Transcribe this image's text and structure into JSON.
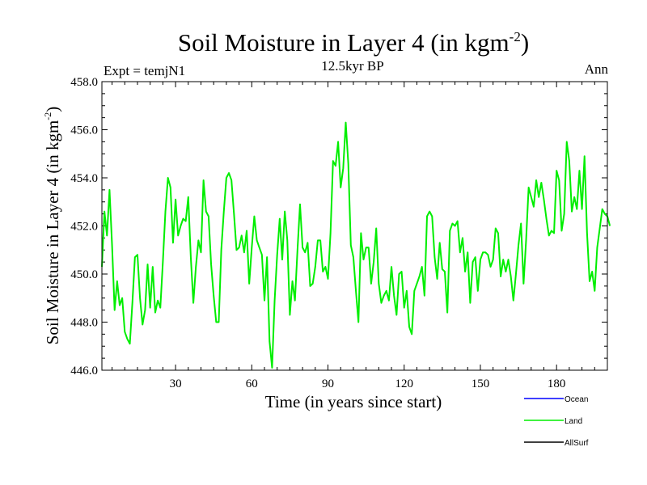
{
  "chart_data": {
    "type": "line",
    "title_main": "Soil Moisture in Layer 4 (in kgm",
    "title_sup": "-2",
    "title_close": ")",
    "subtitle": "12.5kyr BP",
    "left_label": "Expt = temjN1",
    "right_label": "Ann",
    "xlabel": "Time (in years since start)",
    "ylabel_main": "Soil Moisture in Layer 4 (in kgm",
    "ylabel_sup": "-2",
    "ylabel_close": ")",
    "xlim": [
      1,
      200
    ],
    "ylim": [
      446.0,
      458.0
    ],
    "x_ticks": [
      30,
      60,
      90,
      120,
      150,
      180
    ],
    "y_ticks": [
      "446.0",
      "448.0",
      "450.0",
      "452.0",
      "454.0",
      "456.0",
      "458.0"
    ],
    "legend_position": "bottom-right",
    "legend": [
      {
        "name": "Ocean",
        "color": "#0000ff"
      },
      {
        "name": "Land",
        "color": "#00ee00"
      },
      {
        "name": "AllSurf",
        "color": "#000000"
      }
    ],
    "series": [
      {
        "name": "Land",
        "color": "#00ee00",
        "x_start": 1,
        "values": [
          450.3,
          452.6,
          451.6,
          453.5,
          451.2,
          448.5,
          449.7,
          448.7,
          449.0,
          447.6,
          447.3,
          447.1,
          448.8,
          450.7,
          450.8,
          449.0,
          447.9,
          448.5,
          450.4,
          448.6,
          450.3,
          448.4,
          448.9,
          448.6,
          450.5,
          452.6,
          454.0,
          453.6,
          451.3,
          453.1,
          451.6,
          452.0,
          452.3,
          452.2,
          453.2,
          450.7,
          448.8,
          450.3,
          451.4,
          450.9,
          453.9,
          452.6,
          452.4,
          450.4,
          449.1,
          448.0,
          448.0,
          451.0,
          452.6,
          454.0,
          454.2,
          453.9,
          452.5,
          451.0,
          451.1,
          451.6,
          450.9,
          451.8,
          449.6,
          451.1,
          452.4,
          451.4,
          451.1,
          450.8,
          448.9,
          450.7,
          447.2,
          446.1,
          448.9,
          450.8,
          452.3,
          450.6,
          452.6,
          451.4,
          448.3,
          449.7,
          448.9,
          451.0,
          452.9,
          451.1,
          450.9,
          451.3,
          449.5,
          449.6,
          450.3,
          451.4,
          451.4,
          450.1,
          450.3,
          449.8,
          451.7,
          454.7,
          454.5,
          455.5,
          453.6,
          454.4,
          456.3,
          454.6,
          451.2,
          450.7,
          449.3,
          448.0,
          451.7,
          450.6,
          451.1,
          451.1,
          449.6,
          450.5,
          451.9,
          449.6,
          448.8,
          449.1,
          449.3,
          448.9,
          450.3,
          449.1,
          448.3,
          450.0,
          450.1,
          448.6,
          449.3,
          447.8,
          447.5,
          449.3,
          449.6,
          449.9,
          450.3,
          449.1,
          452.4,
          452.6,
          452.4,
          450.7,
          449.8,
          451.3,
          450.2,
          450.1,
          448.4,
          451.8,
          452.1,
          452.0,
          452.2,
          450.9,
          451.5,
          450.1,
          450.9,
          448.8,
          450.5,
          450.7,
          449.3,
          450.6,
          450.9,
          450.9,
          450.8,
          450.3,
          450.6,
          451.9,
          451.7,
          449.9,
          450.6,
          450.1,
          450.6,
          449.9,
          448.9,
          450.0,
          451.2,
          452.1,
          449.6,
          451.4,
          453.6,
          453.2,
          452.8,
          453.9,
          453.2,
          453.8,
          453.1,
          452.3,
          451.6,
          451.8,
          451.7,
          454.3,
          453.9,
          451.8,
          452.5,
          455.5,
          454.7,
          452.6,
          453.2,
          452.7,
          454.3,
          452.7,
          454.9,
          451.7,
          449.7,
          450.1,
          449.3,
          451.1,
          451.9,
          452.7,
          452.5,
          452.4,
          452.0
        ]
      }
    ]
  }
}
